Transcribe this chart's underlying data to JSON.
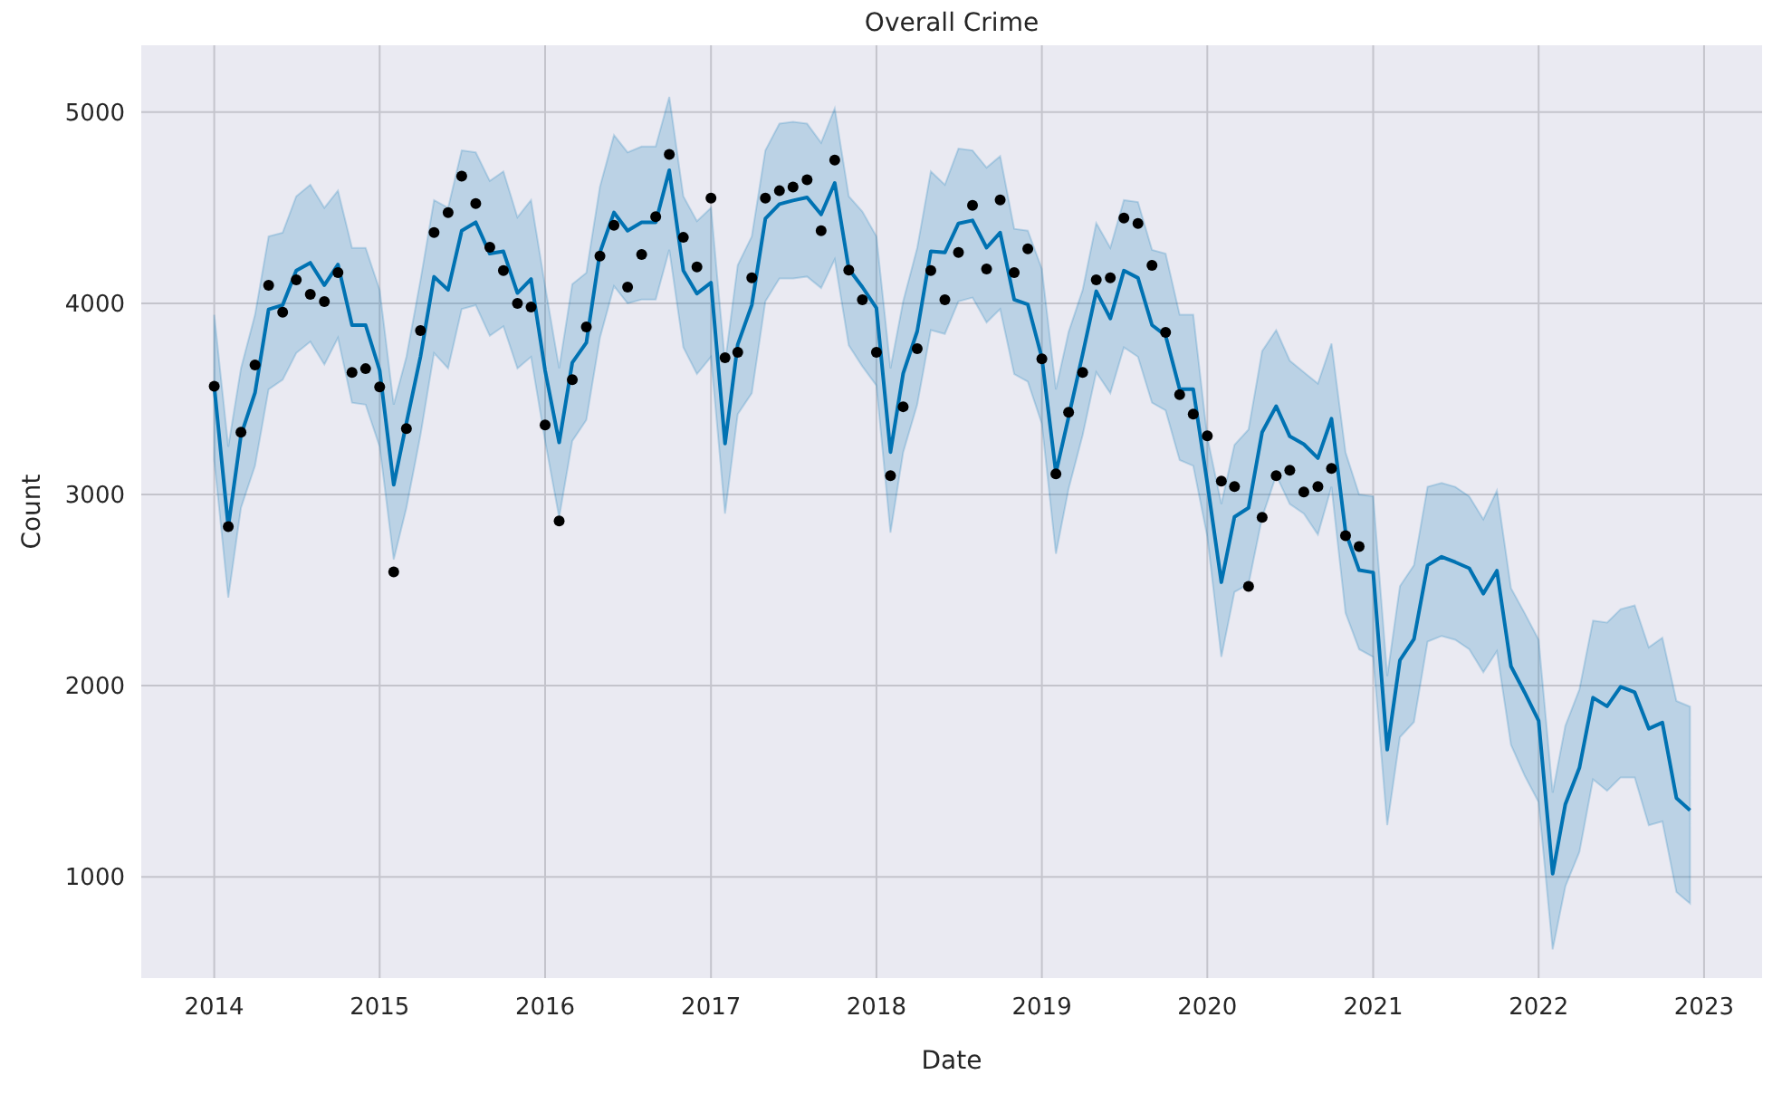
{
  "chart_data": {
    "type": "line",
    "title": "Overall Crime",
    "xlabel": "Date",
    "ylabel": "Count",
    "grid": true,
    "xlim": [
      "2013-07-24",
      "2023-05-09"
    ],
    "xticks": [
      "2014",
      "2015",
      "2016",
      "2017",
      "2018",
      "2019",
      "2020",
      "2021",
      "2022",
      "2023"
    ],
    "ylim": [
      470,
      5350
    ],
    "yticks": [
      1000,
      2000,
      3000,
      4000,
      5000
    ],
    "x": [
      "2014-01",
      "2014-02",
      "2014-03",
      "2014-04",
      "2014-05",
      "2014-06",
      "2014-07",
      "2014-08",
      "2014-09",
      "2014-10",
      "2014-11",
      "2014-12",
      "2015-01",
      "2015-02",
      "2015-03",
      "2015-04",
      "2015-05",
      "2015-06",
      "2015-07",
      "2015-08",
      "2015-09",
      "2015-10",
      "2015-11",
      "2015-12",
      "2016-01",
      "2016-02",
      "2016-03",
      "2016-04",
      "2016-05",
      "2016-06",
      "2016-07",
      "2016-08",
      "2016-09",
      "2016-10",
      "2016-11",
      "2016-12",
      "2017-01",
      "2017-02",
      "2017-03",
      "2017-04",
      "2017-05",
      "2017-06",
      "2017-07",
      "2017-08",
      "2017-09",
      "2017-10",
      "2017-11",
      "2017-12",
      "2018-01",
      "2018-02",
      "2018-03",
      "2018-04",
      "2018-05",
      "2018-06",
      "2018-07",
      "2018-08",
      "2018-09",
      "2018-10",
      "2018-11",
      "2018-12",
      "2019-01",
      "2019-02",
      "2019-03",
      "2019-04",
      "2019-05",
      "2019-06",
      "2019-07",
      "2019-08",
      "2019-09",
      "2019-10",
      "2019-11",
      "2019-12",
      "2020-01",
      "2020-02",
      "2020-03",
      "2020-04",
      "2020-05",
      "2020-06",
      "2020-07",
      "2020-08",
      "2020-09",
      "2020-10",
      "2020-11",
      "2020-12",
      "2021-01",
      "2021-02",
      "2021-03",
      "2021-04",
      "2021-05",
      "2021-06",
      "2021-07",
      "2021-08",
      "2021-09",
      "2021-10",
      "2021-11",
      "2021-12",
      "2022-01",
      "2022-02",
      "2022-03",
      "2022-04",
      "2022-05",
      "2022-06",
      "2022-07",
      "2022-08",
      "2022-09",
      "2022-10",
      "2022-11",
      "2022-12"
    ],
    "series": [
      {
        "color": "#0072b2",
        "line_style": "solid",
        "marker": "none",
        "values": [
          3566,
          2832,
          3310,
          3532,
          3968,
          3991,
          4171,
          4212,
          4095,
          4203,
          3886,
          3886,
          3649,
          3051,
          3373,
          3721,
          4139,
          4070,
          4380,
          4424,
          4260,
          4272,
          4054,
          4127,
          3649,
          3272,
          3690,
          3794,
          4266,
          4475,
          4380,
          4424,
          4424,
          4696,
          4171,
          4051,
          4108,
          3266,
          3785,
          3991,
          4443,
          4519,
          4538,
          4554,
          4465,
          4630,
          4180,
          4085,
          3975,
          3222,
          3633,
          3854,
          4272,
          4266,
          4418,
          4434,
          4291,
          4370,
          4019,
          3994,
          3715,
          3114,
          3405,
          3734,
          4063,
          3921,
          4171,
          4133,
          3886,
          3832,
          3551,
          3551,
          3060,
          2541,
          2883,
          2930,
          3326,
          3462,
          3304,
          3263,
          3190,
          3396,
          2804,
          2604,
          2592,
          1665,
          2133,
          2244,
          2630,
          2674,
          2646,
          2614,
          2481,
          2601,
          2101,
          1965,
          1816,
          1016,
          1380,
          1570,
          1937,
          1892,
          1994,
          1965,
          1775,
          1807,
          1412,
          1348
        ],
        "upper": [
          3940,
          3250,
          3660,
          3940,
          4350,
          4370,
          4560,
          4620,
          4500,
          4590,
          4290,
          4290,
          4070,
          3470,
          3720,
          4120,
          4540,
          4500,
          4800,
          4790,
          4640,
          4690,
          4450,
          4540,
          4090,
          3660,
          4100,
          4160,
          4610,
          4880,
          4790,
          4820,
          4820,
          5080,
          4560,
          4430,
          4500,
          3690,
          4200,
          4350,
          4800,
          4940,
          4950,
          4940,
          4840,
          5020,
          4560,
          4480,
          4350,
          3660,
          4010,
          4290,
          4690,
          4620,
          4810,
          4800,
          4710,
          4770,
          4390,
          4380,
          4180,
          3550,
          3850,
          4070,
          4420,
          4290,
          4540,
          4530,
          4280,
          4260,
          3940,
          3940,
          3300,
          2950,
          3260,
          3340,
          3750,
          3860,
          3700,
          3640,
          3580,
          3790,
          3220,
          3000,
          2990,
          2050,
          2520,
          2630,
          3040,
          3060,
          3040,
          2990,
          2870,
          3020,
          2510,
          2380,
          2240,
          1440,
          1790,
          1980,
          2340,
          2330,
          2400,
          2420,
          2200,
          2250,
          1920,
          1890
        ],
        "lower": [
          3180,
          2460,
          2930,
          3150,
          3550,
          3600,
          3740,
          3800,
          3680,
          3820,
          3480,
          3470,
          3250,
          2660,
          2930,
          3310,
          3740,
          3660,
          3970,
          3990,
          3830,
          3880,
          3660,
          3720,
          3280,
          2880,
          3280,
          3390,
          3820,
          4090,
          4000,
          4020,
          4020,
          4280,
          3770,
          3630,
          3720,
          2900,
          3420,
          3530,
          4010,
          4130,
          4130,
          4140,
          4080,
          4230,
          3780,
          3670,
          3570,
          2800,
          3220,
          3470,
          3860,
          3840,
          4010,
          4030,
          3900,
          3970,
          3630,
          3590,
          3370,
          2690,
          3030,
          3310,
          3640,
          3530,
          3770,
          3720,
          3480,
          3440,
          3180,
          3150,
          2780,
          2150,
          2490,
          2530,
          2880,
          3100,
          2950,
          2900,
          2790,
          3040,
          2380,
          2190,
          2150,
          1270,
          1730,
          1810,
          2230,
          2260,
          2240,
          2190,
          2070,
          2180,
          1690,
          1530,
          1390,
          620,
          950,
          1130,
          1510,
          1450,
          1520,
          1520,
          1270,
          1290,
          920,
          860
        ]
      },
      {
        "type": "scatter",
        "color": "#000000",
        "marker": "circle",
        "values": [
          3566,
          2832,
          3326,
          3677,
          4095,
          3953,
          4123,
          4047,
          4009,
          4161,
          3639,
          3658,
          3563,
          2595,
          3345,
          3858,
          4370,
          4475,
          4665,
          4522,
          4294,
          4171,
          4000,
          3981,
          3364,
          2861,
          3601,
          3877,
          4247,
          4408,
          4085,
          4256,
          4453,
          4779,
          4345,
          4190,
          4551,
          3715,
          3744,
          4133,
          4551,
          4589,
          4608,
          4646,
          4380,
          4750,
          4174,
          4019,
          3744,
          3098,
          3459,
          3763,
          4171,
          4019,
          4266,
          4513,
          4180,
          4541,
          4161,
          4285,
          3709,
          3108,
          3430,
          3639,
          4123,
          4133,
          4446,
          4418,
          4199,
          3848,
          3522,
          3421,
          3307,
          3070,
          3041,
          2519,
          2880,
          3098,
          3127,
          3013,
          3041,
          3136,
          2785,
          2728,
          null,
          null,
          null,
          null,
          null,
          null,
          null,
          null,
          null,
          null,
          null,
          null,
          null,
          null,
          null,
          null,
          null,
          null,
          null,
          null,
          null,
          null,
          null,
          null
        ]
      }
    ]
  }
}
